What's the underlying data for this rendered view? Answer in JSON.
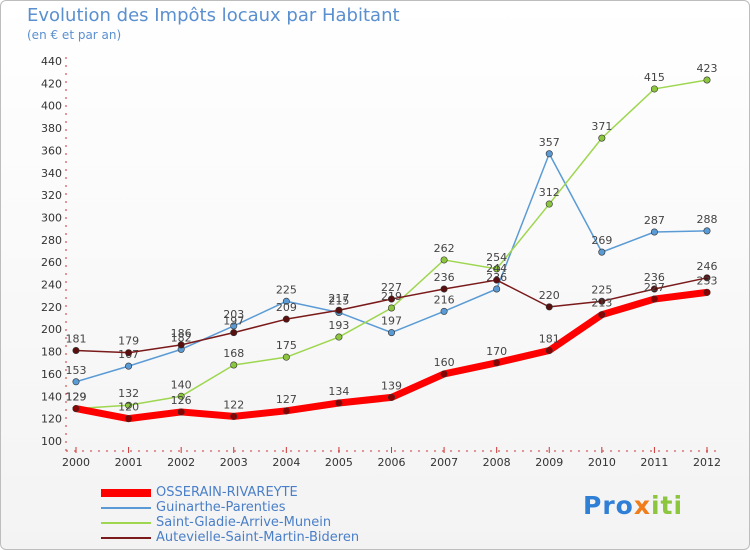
{
  "title": "Evolution des Impôts locaux par Habitant",
  "subtitle": "(en € et par an)",
  "logo": {
    "part1": "Pro",
    "part2": "x",
    "part3": "iti"
  },
  "chart_data": {
    "type": "line",
    "x": [
      "2000",
      "2001",
      "2002",
      "2003",
      "2004",
      "2005",
      "2006",
      "2007",
      "2008",
      "2009",
      "2010",
      "2011",
      "2012"
    ],
    "yticks": [
      100,
      120,
      140,
      160,
      180,
      200,
      220,
      240,
      260,
      280,
      300,
      320,
      340,
      360,
      380,
      400,
      420,
      440
    ],
    "ylim": [
      100,
      440
    ],
    "grid": false,
    "legend_position": "bottom-left",
    "series": [
      {
        "name": "OSSERAIN-RIVAREYTE",
        "color": "#ff0000",
        "marker": "#8b0000",
        "width": 7,
        "values": [
          129,
          120,
          126,
          122,
          127,
          134,
          139,
          160,
          170,
          181,
          213,
          227,
          233
        ]
      },
      {
        "name": "Guinarthe-Parenties",
        "color": "#5b9bd5",
        "marker": "#5b9bd5",
        "width": 1.5,
        "values": [
          153,
          167,
          182,
          203,
          225,
          215,
          197,
          216,
          236,
          357,
          269,
          287,
          288
        ]
      },
      {
        "name": "Saint-Gladie-Arrive-Munein",
        "color": "#9ed64f",
        "marker": "#8cc63f",
        "width": 1.5,
        "values": [
          129,
          132,
          140,
          168,
          175,
          193,
          219,
          262,
          254,
          312,
          371,
          415,
          423
        ]
      },
      {
        "name": "Autevielle-Saint-Martin-Bideren",
        "color": "#7a1a1a",
        "marker": "#5a0f0f",
        "width": 1.5,
        "values": [
          181,
          179,
          186,
          197,
          209,
          217,
          227,
          236,
          244,
          220,
          225,
          236,
          246
        ]
      }
    ]
  }
}
